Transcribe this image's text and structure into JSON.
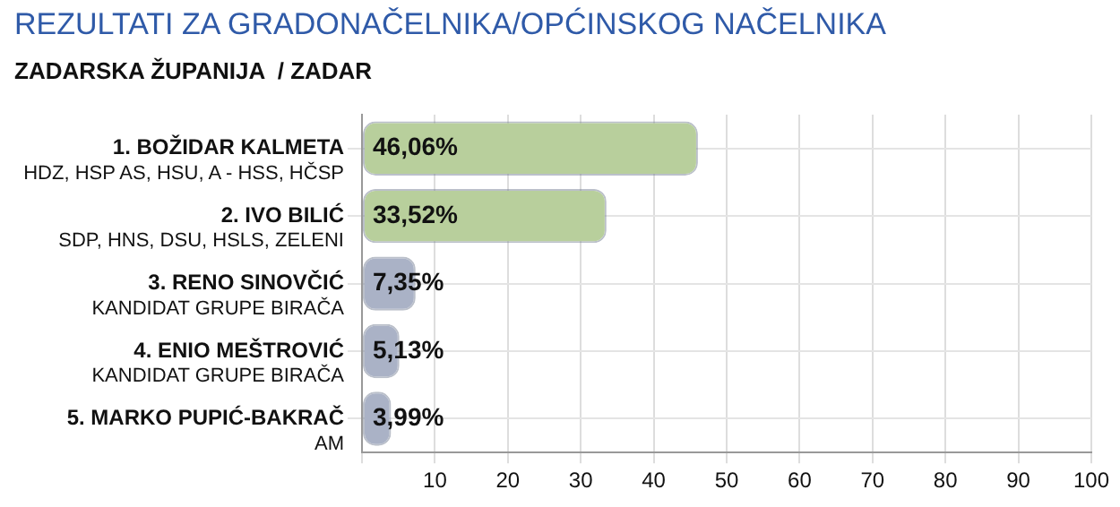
{
  "chart_data": {
    "type": "bar",
    "orientation": "horizontal",
    "title": "REZULTATI ZA GRADONAČELNIKA/OPĆINSKOG NAČELNIKA",
    "subtitle": "ZADARSKA ŽUPANIJA  / ZADAR",
    "categories": [
      "1. BOŽIDAR KALMETA\nHDZ, HSP AS, HSU, A - HSS, HČSP",
      "2. IVO BILIĆ\nSDP, HNS, DSU, HSLS, ZELENI",
      "3. RENO SINOVČIĆ\nKANDIDAT GRUPE BIRAČA",
      "4. ENIO MEŠTROVIĆ\nKANDIDAT GRUPE BIRAČA",
      "5. MARKO PUPIĆ-BAKRAČ\nAM"
    ],
    "values": [
      46.06,
      33.52,
      7.35,
      5.13,
      3.99
    ],
    "value_labels": [
      "46,06%",
      "33,52%",
      "7,35%",
      "5,13%",
      "3,99%"
    ],
    "colors": [
      "#b8cf9c",
      "#b8cf9c",
      "#aab2c6",
      "#aab2c6",
      "#aab2c6"
    ],
    "xlim": [
      0,
      100
    ],
    "xticks": [
      {
        "value": 0,
        "label": null
      },
      10,
      20,
      30,
      40,
      50,
      60,
      70,
      80,
      90,
      100
    ],
    "grid": true,
    "legend": false
  }
}
